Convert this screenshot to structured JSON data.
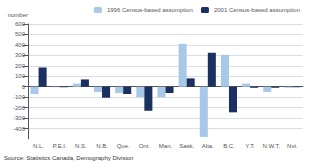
{
  "chart_data": {
    "type": "bar",
    "categories": [
      "N.L.",
      "P.E.I.",
      "N.S.",
      "N.B.",
      "Que.",
      "Ont.",
      "Man.",
      "Sask.",
      "Alta.",
      "B.C.",
      "Y.T.",
      "N.W.T.",
      "Nvt."
    ],
    "series": [
      {
        "name": "1996 Census-based assumption",
        "color": "#a8c8e8",
        "values": [
          -70,
          -5,
          30,
          -50,
          -60,
          -100,
          -100,
          410,
          -480,
          305,
          30,
          -50,
          -10
        ]
      },
      {
        "name": "2001 Census-based assumption",
        "color": "#1a3060",
        "values": [
          185,
          -5,
          70,
          -105,
          -70,
          -230,
          -60,
          80,
          325,
          -245,
          -10,
          -10,
          -5
        ]
      }
    ],
    "ylabel": "number",
    "annotations": [
      "Source: Statistics Canada, Demography Division"
    ],
    "ylim": [
      -500,
      600
    ],
    "yticks": [
      -400,
      -300,
      -200,
      -100,
      0,
      100,
      200,
      300,
      400,
      500,
      600
    ],
    "grid": true,
    "legend": "upper left"
  }
}
